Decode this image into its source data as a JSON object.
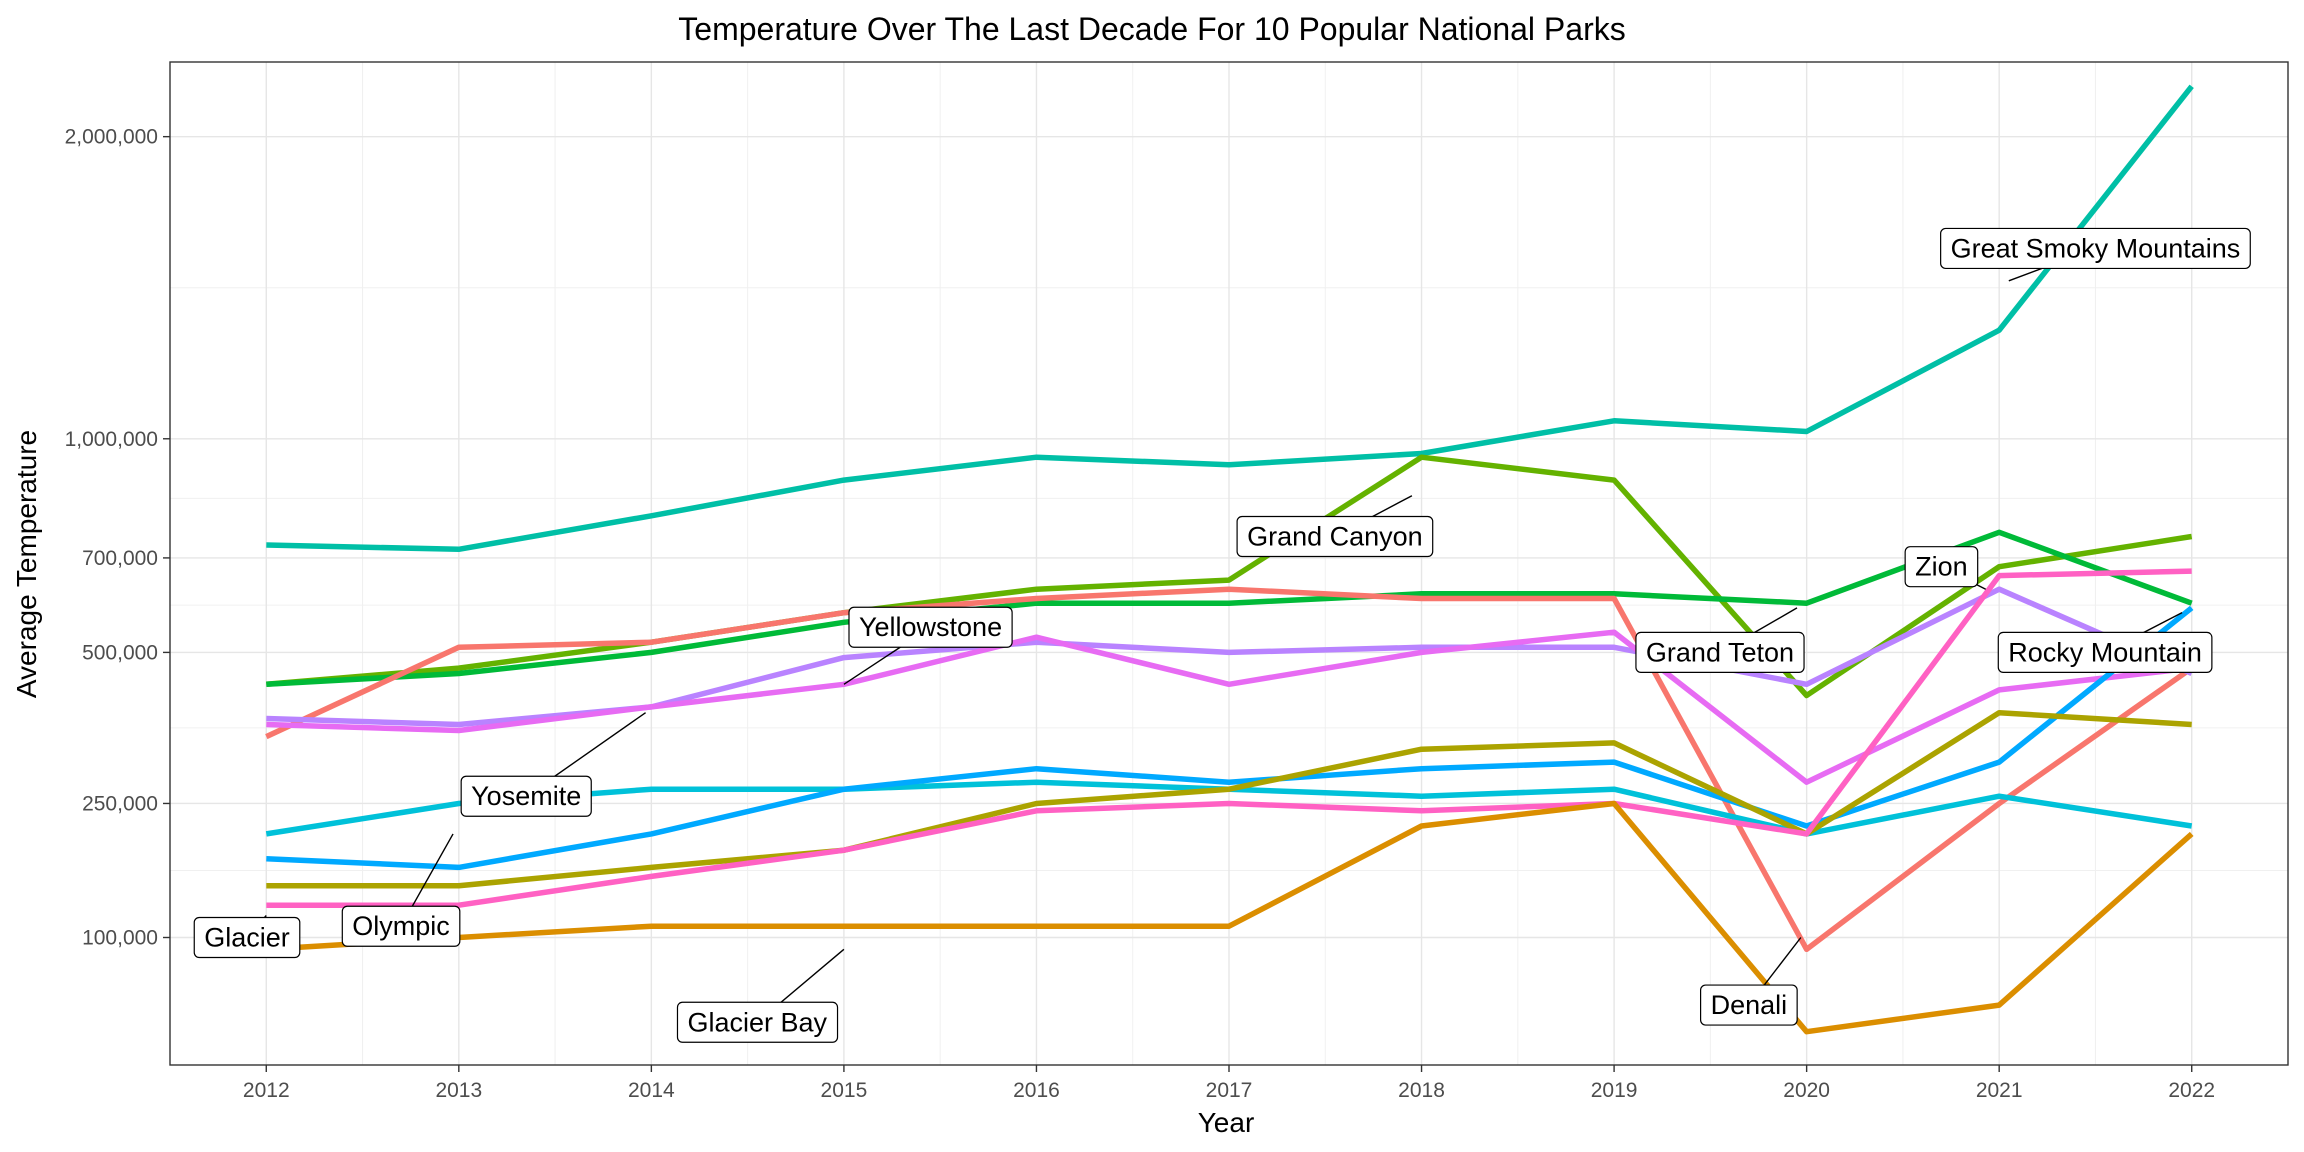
{
  "chart_data": {
    "type": "line",
    "title": "Temperature Over The Last Decade For 10 Popular National Parks",
    "xlabel": "Year",
    "ylabel": "Average Temperature",
    "x": [
      2012,
      2013,
      2014,
      2015,
      2016,
      2017,
      2018,
      2019,
      2020,
      2021,
      2022
    ],
    "x_tick_labels": [
      "2012",
      "2013",
      "2014",
      "2015",
      "2016",
      "2017",
      "2018",
      "2019",
      "2020",
      "2021",
      "2022"
    ],
    "y_ticks": [
      100000,
      250000,
      500000,
      700000,
      1000000,
      2000000
    ],
    "y_tick_labels": [
      "100,000",
      "250,000",
      "500,000",
      "700,000",
      "1,000,000",
      "2,000,000"
    ],
    "y_scale": "sqrt",
    "ylim": [
      20000,
      2300000
    ],
    "xlim": [
      2011.5,
      2022.5
    ],
    "grid": true,
    "legend": "none",
    "series": [
      {
        "name": "Great Smoky Mountains",
        "color": "#00BFA6",
        "values": [
          730000,
          720000,
          800000,
          890000,
          950000,
          930000,
          960000,
          1050000,
          1020000,
          1320000,
          2200000
        ]
      },
      {
        "name": "Grand Canyon",
        "color": "#64B200",
        "values": [
          440000,
          470000,
          520000,
          580000,
          630000,
          650000,
          950000,
          890000,
          420000,
          680000,
          750000
        ]
      },
      {
        "name": "Zion",
        "color": "#00BA38",
        "values": [
          440000,
          460000,
          500000,
          560000,
          600000,
          600000,
          620000,
          620000,
          600000,
          760000,
          600000
        ]
      },
      {
        "name": "Grand Teton",
        "color": "#F8766D",
        "values": [
          350000,
          510000,
          520000,
          580000,
          610000,
          630000,
          610000,
          610000,
          90000,
          250000,
          470000
        ]
      },
      {
        "name": "Rocky Mountain",
        "color": "#B983FF",
        "values": [
          380000,
          370000,
          400000,
          490000,
          520000,
          500000,
          510000,
          510000,
          440000,
          630000,
          460000
        ]
      },
      {
        "name": "Yellowstone",
        "color": "#E76BF3",
        "values": [
          370000,
          360000,
          400000,
          440000,
          530000,
          440000,
          500000,
          540000,
          280000,
          430000,
          470000
        ]
      },
      {
        "name": "Yosemite",
        "color": "#00C1D9",
        "values": [
          210000,
          250000,
          270000,
          270000,
          280000,
          270000,
          260000,
          270000,
          210000,
          260000,
          220000
        ]
      },
      {
        "name": "Olympic",
        "color": "#00A9FF",
        "values": [
          180000,
          170000,
          210000,
          270000,
          300000,
          280000,
          300000,
          310000,
          220000,
          310000,
          590000
        ]
      },
      {
        "name": "Glacier",
        "color": "#ABA300",
        "values": [
          150000,
          150000,
          170000,
          190000,
          250000,
          270000,
          330000,
          340000,
          210000,
          390000,
          370000
        ]
      },
      {
        "name": "Denali",
        "color": "#FF61C3",
        "values": [
          130000,
          130000,
          160000,
          190000,
          240000,
          250000,
          240000,
          250000,
          210000,
          660000,
          670000
        ]
      },
      {
        "name": "Glacier Bay",
        "color": "#DB8E00",
        "values": [
          90000,
          100000,
          110000,
          110000,
          110000,
          110000,
          220000,
          250000,
          35000,
          50000,
          210000
        ]
      }
    ],
    "annotations": [
      {
        "text": "Great Smoky Mountains",
        "series": "Great Smoky Mountains",
        "x": 2021.05,
        "y": 1480000,
        "lx": 2021.5,
        "ly": 1590000
      },
      {
        "text": "Grand Canyon",
        "series": "Grand Canyon",
        "x": 2017.95,
        "y": 850000,
        "lx": 2017.55,
        "ly": 750000
      },
      {
        "text": "Yellowstone",
        "series": "Yellowstone",
        "x": 2015.0,
        "y": 440000,
        "lx": 2015.45,
        "ly": 550000
      },
      {
        "text": "Grand Teton",
        "series": "Grand Teton",
        "x": 2019.95,
        "y": 590000,
        "lx": 2019.55,
        "ly": 500000
      },
      {
        "text": "Zion",
        "series": "Zion",
        "x": 2020.93,
        "y": 630000,
        "lx": 2020.7,
        "ly": 680000
      },
      {
        "text": "Rocky Mountain",
        "series": "Rocky Mountain",
        "x": 2021.95,
        "y": 580000,
        "lx": 2021.55,
        "ly": 500000
      },
      {
        "text": "Yosemite",
        "series": "Yosemite",
        "x": 2013.97,
        "y": 390000,
        "lx": 2013.35,
        "ly": 260000
      },
      {
        "text": "Olympic",
        "series": "Olympic",
        "x": 2012.97,
        "y": 210000,
        "lx": 2012.7,
        "ly": 110000
      },
      {
        "text": "Glacier",
        "series": "Glacier",
        "x": 2012.0,
        "y": 120000,
        "lx": 2011.9,
        "ly": 100000
      },
      {
        "text": "Denali",
        "series": "Grand Teton",
        "x": 2019.97,
        "y": 100000,
        "lx": 2019.7,
        "ly": 50000
      },
      {
        "text": "Glacier Bay",
        "series": "Glacier Bay",
        "x": 2015.0,
        "y": 90000,
        "lx": 2014.55,
        "ly": 40000
      }
    ]
  }
}
